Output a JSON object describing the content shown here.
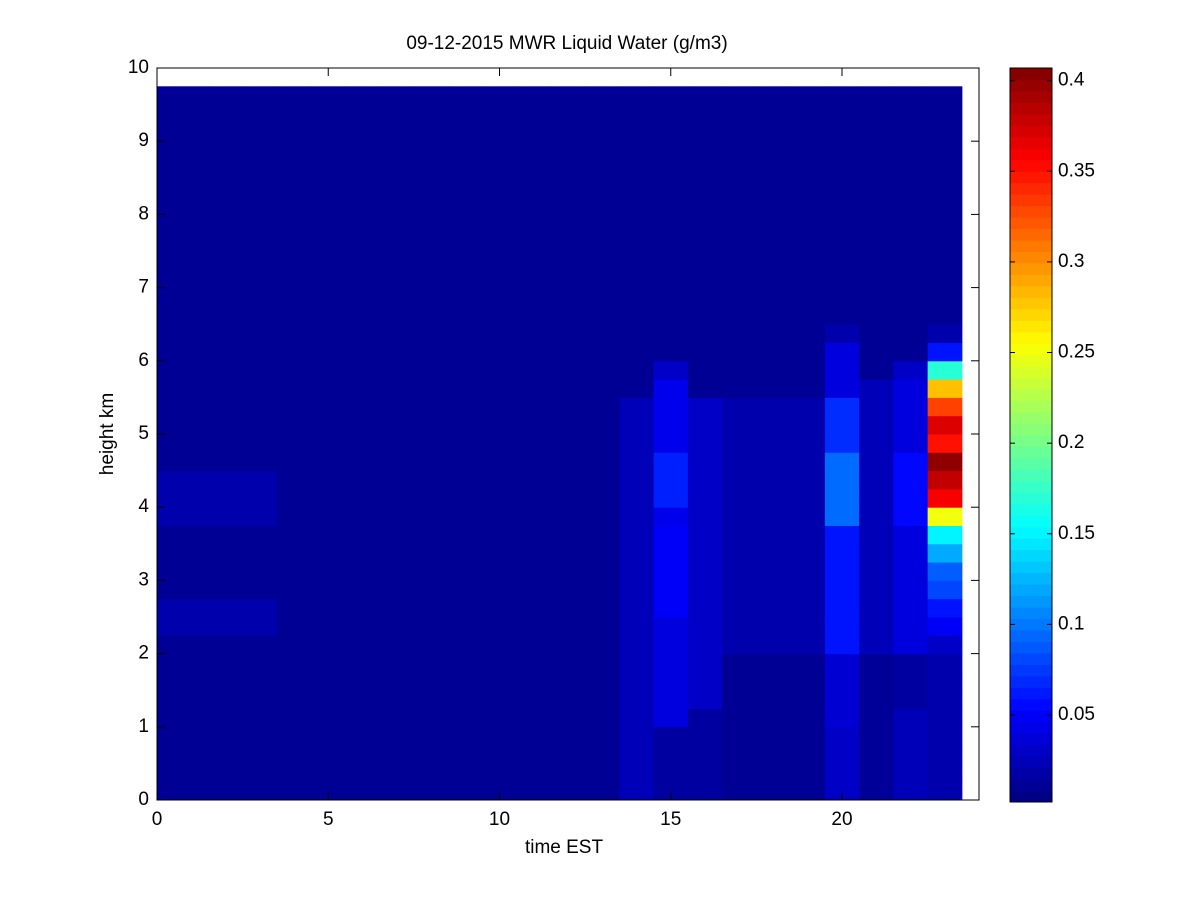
{
  "chart_data": {
    "type": "heatmap",
    "title": "09-12-2015 MWR Liquid Water (g/m3)",
    "x_label": "time EST",
    "y_label": "height km",
    "xlim": [
      0,
      24
    ],
    "xticks": [
      0,
      5,
      10,
      15,
      20
    ],
    "ylim": [
      0,
      10
    ],
    "yticks": [
      0,
      1,
      2,
      3,
      4,
      5,
      6,
      7,
      8,
      9,
      10
    ],
    "clim": [
      0.002,
      0.407
    ],
    "cticks": [
      0.05,
      0.1,
      0.15,
      0.2,
      0.25,
      0.3,
      0.35,
      0.4
    ],
    "colormap": "jet",
    "x_edges": [
      0,
      0.5,
      1.5,
      2.5,
      3.5,
      4.5,
      5.5,
      6.5,
      7.5,
      8.5,
      9.5,
      10.5,
      11.5,
      12.5,
      13.5,
      14.5,
      15.5,
      16.5,
      17.5,
      18.5,
      19.5,
      20.5,
      21.5,
      22.5,
      23.5
    ],
    "y_edges": [
      0,
      0.25,
      0.5,
      0.75,
      1,
      1.25,
      1.5,
      1.75,
      2,
      2.25,
      2.5,
      2.75,
      3,
      3.25,
      3.5,
      3.75,
      4,
      4.25,
      4.5,
      4.75,
      5,
      5.25,
      5.5,
      5.75,
      6,
      6.25,
      6.5,
      9.75
    ],
    "z": [
      [
        0.01,
        0.01,
        0.01,
        0.01,
        0.01,
        0.01,
        0.01,
        0.01,
        0.01,
        0.02,
        0.02,
        0.01,
        0.01,
        0.01,
        0.01,
        0.02,
        0.02,
        0.02,
        0.01,
        0.01,
        0.01,
        0.01,
        0.01,
        0.01,
        0.01,
        0.01,
        0.01
      ],
      [
        0.01,
        0.01,
        0.01,
        0.01,
        0.01,
        0.01,
        0.01,
        0.01,
        0.01,
        0.02,
        0.02,
        0.01,
        0.01,
        0.01,
        0.01,
        0.02,
        0.02,
        0.02,
        0.01,
        0.01,
        0.01,
        0.01,
        0.01,
        0.01,
        0.01,
        0.01,
        0.01
      ],
      [
        0.01,
        0.01,
        0.01,
        0.01,
        0.01,
        0.01,
        0.01,
        0.01,
        0.01,
        0.02,
        0.02,
        0.01,
        0.01,
        0.01,
        0.01,
        0.02,
        0.02,
        0.02,
        0.01,
        0.01,
        0.01,
        0.01,
        0.01,
        0.01,
        0.01,
        0.01,
        0.01
      ],
      [
        0.01,
        0.01,
        0.01,
        0.01,
        0.01,
        0.01,
        0.01,
        0.01,
        0.01,
        0.02,
        0.02,
        0.01,
        0.01,
        0.01,
        0.01,
        0.02,
        0.02,
        0.02,
        0.01,
        0.01,
        0.01,
        0.01,
        0.01,
        0.01,
        0.01,
        0.01,
        0.01
      ],
      [
        0.01,
        0.01,
        0.01,
        0.01,
        0.01,
        0.01,
        0.01,
        0.01,
        0.01,
        0.01,
        0.01,
        0.01,
        0.01,
        0.01,
        0.01,
        0.01,
        0.01,
        0.01,
        0.01,
        0.01,
        0.01,
        0.01,
        0.01,
        0.01,
        0.01,
        0.01,
        0.01
      ],
      [
        0.01,
        0.01,
        0.01,
        0.01,
        0.01,
        0.01,
        0.01,
        0.01,
        0.01,
        0.01,
        0.01,
        0.01,
        0.01,
        0.01,
        0.01,
        0.01,
        0.01,
        0.01,
        0.01,
        0.01,
        0.01,
        0.01,
        0.01,
        0.01,
        0.01,
        0.01,
        0.01
      ],
      [
        0.01,
        0.01,
        0.01,
        0.01,
        0.01,
        0.01,
        0.01,
        0.01,
        0.01,
        0.01,
        0.01,
        0.01,
        0.01,
        0.01,
        0.01,
        0.01,
        0.01,
        0.01,
        0.01,
        0.01,
        0.01,
        0.01,
        0.01,
        0.01,
        0.01,
        0.01,
        0.01
      ],
      [
        0.01,
        0.01,
        0.01,
        0.01,
        0.01,
        0.01,
        0.01,
        0.01,
        0.01,
        0.01,
        0.01,
        0.01,
        0.01,
        0.01,
        0.01,
        0.01,
        0.01,
        0.01,
        0.01,
        0.01,
        0.01,
        0.01,
        0.01,
        0.01,
        0.01,
        0.01,
        0.01
      ],
      [
        0.01,
        0.01,
        0.01,
        0.01,
        0.01,
        0.01,
        0.01,
        0.01,
        0.01,
        0.01,
        0.01,
        0.01,
        0.01,
        0.01,
        0.01,
        0.01,
        0.01,
        0.01,
        0.01,
        0.01,
        0.01,
        0.01,
        0.01,
        0.01,
        0.01,
        0.01,
        0.01
      ],
      [
        0.01,
        0.01,
        0.01,
        0.01,
        0.01,
        0.01,
        0.01,
        0.01,
        0.01,
        0.01,
        0.01,
        0.01,
        0.01,
        0.01,
        0.01,
        0.01,
        0.01,
        0.01,
        0.01,
        0.01,
        0.01,
        0.01,
        0.01,
        0.01,
        0.01,
        0.01,
        0.01
      ],
      [
        0.01,
        0.01,
        0.01,
        0.01,
        0.01,
        0.01,
        0.01,
        0.01,
        0.01,
        0.01,
        0.01,
        0.01,
        0.01,
        0.01,
        0.01,
        0.01,
        0.01,
        0.01,
        0.01,
        0.01,
        0.01,
        0.01,
        0.01,
        0.01,
        0.01,
        0.01,
        0.01
      ],
      [
        0.01,
        0.01,
        0.01,
        0.01,
        0.01,
        0.01,
        0.01,
        0.01,
        0.01,
        0.01,
        0.01,
        0.01,
        0.01,
        0.01,
        0.01,
        0.01,
        0.01,
        0.01,
        0.01,
        0.01,
        0.01,
        0.01,
        0.01,
        0.01,
        0.01,
        0.01,
        0.01
      ],
      [
        0.01,
        0.01,
        0.01,
        0.01,
        0.01,
        0.01,
        0.01,
        0.01,
        0.01,
        0.01,
        0.01,
        0.01,
        0.01,
        0.01,
        0.01,
        0.01,
        0.01,
        0.01,
        0.01,
        0.01,
        0.01,
        0.01,
        0.01,
        0.01,
        0.01,
        0.01,
        0.01
      ],
      [
        0.01,
        0.01,
        0.01,
        0.01,
        0.01,
        0.01,
        0.01,
        0.01,
        0.01,
        0.01,
        0.01,
        0.01,
        0.01,
        0.01,
        0.01,
        0.01,
        0.01,
        0.01,
        0.01,
        0.01,
        0.01,
        0.01,
        0.01,
        0.01,
        0.01,
        0.01,
        0.01
      ],
      [
        0.025,
        0.025,
        0.025,
        0.025,
        0.025,
        0.025,
        0.025,
        0.025,
        0.025,
        0.025,
        0.025,
        0.025,
        0.025,
        0.025,
        0.025,
        0.025,
        0.025,
        0.025,
        0.025,
        0.025,
        0.025,
        0.025,
        0.01,
        0.01,
        0.01,
        0.01,
        0.01
      ],
      [
        0.015,
        0.015,
        0.015,
        0.015,
        0.04,
        0.04,
        0.04,
        0.04,
        0.04,
        0.04,
        0.05,
        0.05,
        0.05,
        0.05,
        0.05,
        0.045,
        0.065,
        0.065,
        0.065,
        0.045,
        0.045,
        0.045,
        0.045,
        0.03,
        0.01,
        0.01,
        0.01
      ],
      [
        0.015,
        0.015,
        0.015,
        0.015,
        0.015,
        0.03,
        0.03,
        0.03,
        0.03,
        0.03,
        0.03,
        0.03,
        0.03,
        0.03,
        0.03,
        0.03,
        0.03,
        0.03,
        0.03,
        0.03,
        0.03,
        0.03,
        0.01,
        0.01,
        0.01,
        0.01,
        0.01
      ],
      [
        0.01,
        0.01,
        0.01,
        0.01,
        0.01,
        0.01,
        0.01,
        0.01,
        0.02,
        0.02,
        0.02,
        0.02,
        0.02,
        0.02,
        0.02,
        0.02,
        0.02,
        0.02,
        0.02,
        0.02,
        0.02,
        0.02,
        0.01,
        0.01,
        0.01,
        0.01,
        0.01
      ],
      [
        0.01,
        0.01,
        0.01,
        0.01,
        0.01,
        0.01,
        0.01,
        0.01,
        0.02,
        0.02,
        0.02,
        0.02,
        0.02,
        0.02,
        0.02,
        0.02,
        0.02,
        0.02,
        0.02,
        0.02,
        0.02,
        0.02,
        0.01,
        0.01,
        0.01,
        0.01,
        0.01
      ],
      [
        0.01,
        0.01,
        0.01,
        0.01,
        0.01,
        0.01,
        0.01,
        0.01,
        0.02,
        0.02,
        0.02,
        0.02,
        0.02,
        0.02,
        0.02,
        0.02,
        0.02,
        0.02,
        0.02,
        0.02,
        0.02,
        0.02,
        0.01,
        0.01,
        0.01,
        0.01,
        0.01
      ],
      [
        0.03,
        0.03,
        0.03,
        0.03,
        0.035,
        0.035,
        0.035,
        0.035,
        0.06,
        0.06,
        0.06,
        0.06,
        0.06,
        0.06,
        0.06,
        0.095,
        0.095,
        0.095,
        0.095,
        0.07,
        0.07,
        0.07,
        0.04,
        0.04,
        0.04,
        0.02,
        0.01
      ],
      [
        0.012,
        0.012,
        0.012,
        0.012,
        0.012,
        0.012,
        0.012,
        0.012,
        0.025,
        0.025,
        0.025,
        0.025,
        0.025,
        0.025,
        0.025,
        0.025,
        0.025,
        0.025,
        0.025,
        0.025,
        0.025,
        0.025,
        0.025,
        0.01,
        0.01,
        0.01,
        0.01
      ],
      [
        0.025,
        0.025,
        0.025,
        0.025,
        0.025,
        0.015,
        0.015,
        0.015,
        0.04,
        0.04,
        0.04,
        0.04,
        0.04,
        0.04,
        0.04,
        0.055,
        0.055,
        0.055,
        0.055,
        0.04,
        0.04,
        0.04,
        0.04,
        0.03,
        0.01,
        0.01,
        0.01
      ],
      [
        0.02,
        0.02,
        0.02,
        0.02,
        0.02,
        0.02,
        0.02,
        0.02,
        0.03,
        0.05,
        0.06,
        0.08,
        0.09,
        0.12,
        0.15,
        0.25,
        0.36,
        0.38,
        0.4,
        0.35,
        0.37,
        0.33,
        0.28,
        0.17,
        0.06,
        0.02,
        0.01
      ]
    ]
  }
}
